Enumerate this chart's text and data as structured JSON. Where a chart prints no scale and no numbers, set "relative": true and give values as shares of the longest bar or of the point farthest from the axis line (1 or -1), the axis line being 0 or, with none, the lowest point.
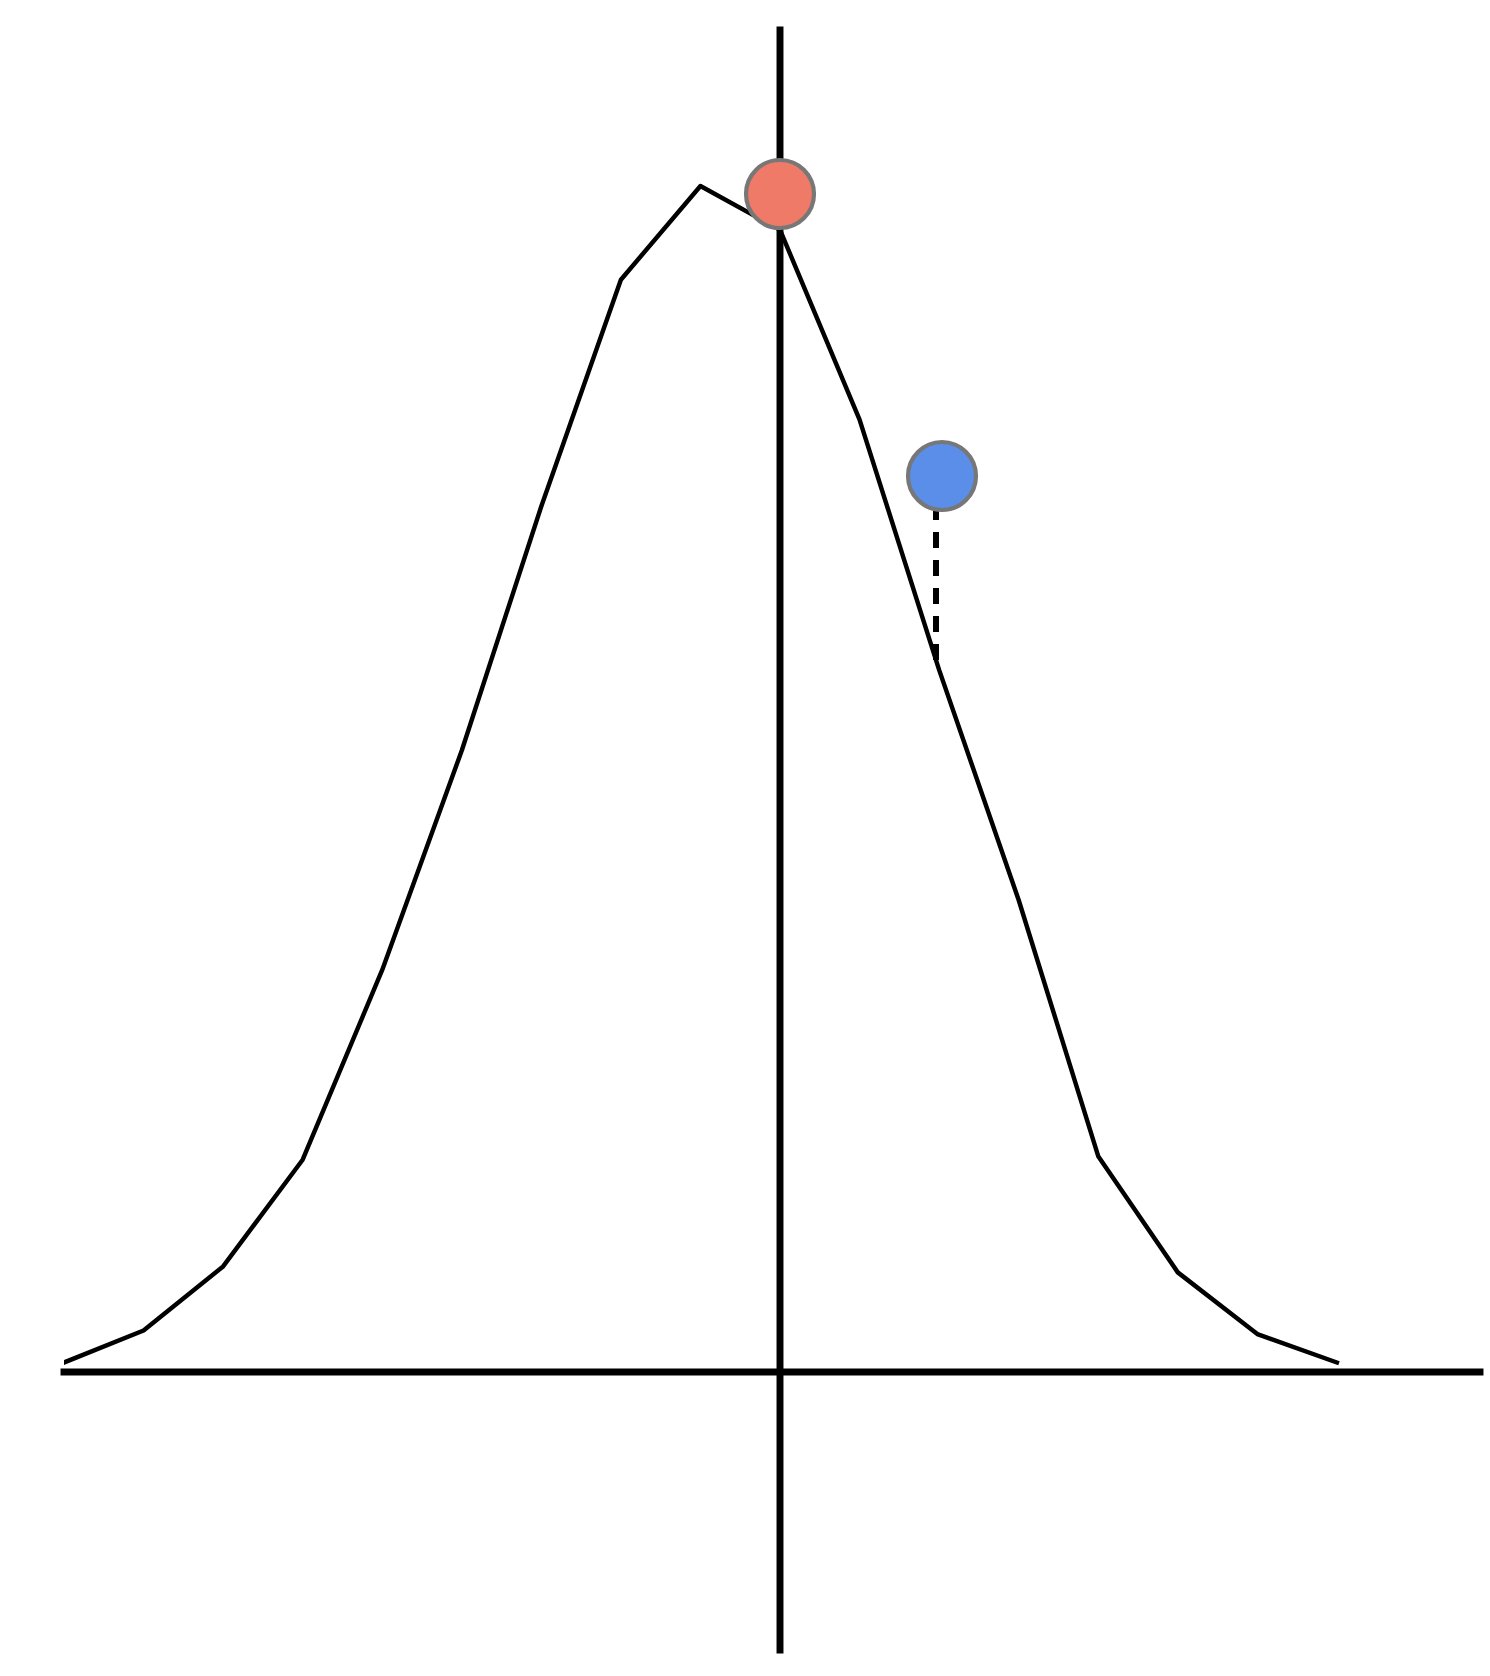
{
  "chart_data": {
    "type": "line",
    "relative": true,
    "categories": [
      null,
      null,
      null,
      null,
      null,
      null,
      null,
      null,
      null,
      null,
      null,
      null,
      null,
      null,
      null,
      null,
      null
    ],
    "series": [
      {
        "color": "#000000",
        "values": [
          0.008,
          0.035,
          0.089,
          0.179,
          0.339,
          0.524,
          0.73,
          0.921,
          1,
          0.963,
          0.803,
          0.592,
          0.398,
          0.182,
          0.084,
          0.032,
          0.008
        ]
      }
    ]
  }
}
